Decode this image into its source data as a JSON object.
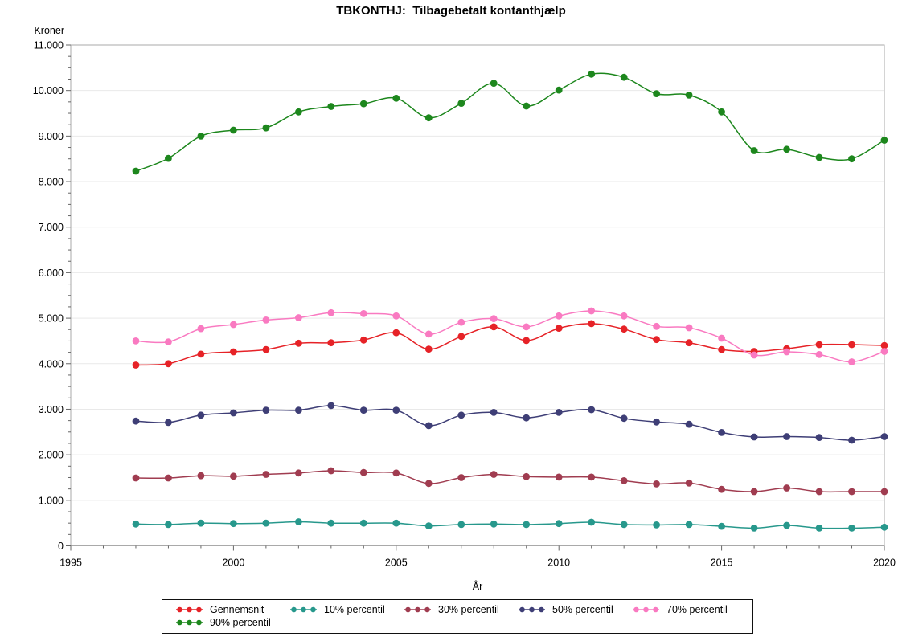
{
  "title": "TBKONTHJ:  Tilbagebetalt kontanthjælp",
  "chart_data": {
    "type": "line",
    "title": "TBKONTHJ:  Tilbagebetalt kontanthjælp",
    "xlabel": "År",
    "ylabel": "Kroner",
    "xlim": [
      1995,
      2020
    ],
    "ylim": [
      0,
      11000
    ],
    "x_major_step": 5,
    "x_minor_step": 1,
    "y_major_step": 1000,
    "y_minor_step": 250,
    "grid": "horizontal-major",
    "legend_position": "bottom",
    "x_tick_labels": [
      "1995",
      "2000",
      "2005",
      "2010",
      "2015",
      "2020"
    ],
    "y_tick_labels": [
      "0",
      "1.000",
      "2.000",
      "3.000",
      "4.000",
      "5.000",
      "6.000",
      "7.000",
      "8.000",
      "9.000",
      "10.000",
      "11.000"
    ],
    "x": [
      1997,
      1998,
      1999,
      2000,
      2001,
      2002,
      2003,
      2004,
      2005,
      2006,
      2007,
      2008,
      2009,
      2010,
      2011,
      2012,
      2013,
      2014,
      2015,
      2016,
      2017,
      2018,
      2019,
      2020
    ],
    "series": [
      {
        "name": "Gennemsnit",
        "color": "#e62227",
        "values": [
          3970,
          4000,
          4210,
          4260,
          4310,
          4450,
          4460,
          4520,
          4680,
          4320,
          4600,
          4810,
          4510,
          4780,
          4880,
          4760,
          4530,
          4460,
          4310,
          4270,
          4330,
          4420,
          4420,
          4400
        ]
      },
      {
        "name": "10% percentil",
        "color": "#27988c",
        "values": [
          480,
          470,
          500,
          490,
          500,
          530,
          500,
          500,
          500,
          440,
          470,
          480,
          470,
          490,
          520,
          470,
          460,
          470,
          430,
          390,
          450,
          390,
          390,
          410
        ]
      },
      {
        "name": "30% percentil",
        "color": "#a03c50",
        "values": [
          1490,
          1490,
          1540,
          1530,
          1570,
          1600,
          1650,
          1610,
          1600,
          1370,
          1500,
          1570,
          1520,
          1510,
          1510,
          1430,
          1360,
          1380,
          1240,
          1190,
          1270,
          1190,
          1190,
          1190
        ]
      },
      {
        "name": "50% percentil",
        "color": "#3e3e76",
        "values": [
          2740,
          2710,
          2870,
          2920,
          2980,
          2980,
          3080,
          2980,
          2980,
          2640,
          2870,
          2930,
          2810,
          2930,
          2990,
          2800,
          2720,
          2670,
          2490,
          2390,
          2400,
          2380,
          2320,
          2400
        ]
      },
      {
        "name": "70% percentil",
        "color": "#f97ac1",
        "values": [
          4500,
          4480,
          4770,
          4860,
          4960,
          5010,
          5120,
          5100,
          5050,
          4650,
          4910,
          4990,
          4810,
          5050,
          5160,
          5050,
          4820,
          4790,
          4560,
          4190,
          4260,
          4200,
          4040,
          4270
        ]
      },
      {
        "name": "90% percentil",
        "color": "#1d871d",
        "values": [
          8230,
          8510,
          9000,
          9130,
          9180,
          9530,
          9650,
          9710,
          9830,
          9400,
          9720,
          10160,
          9660,
          10010,
          10360,
          10290,
          9930,
          9900,
          9530,
          8680,
          8710,
          8530,
          8500,
          8910
        ]
      }
    ],
    "colors": {
      "grid": "#e9e9e9",
      "frame": "#a9a9a9",
      "tick": "#666666",
      "text": "#000000"
    }
  }
}
